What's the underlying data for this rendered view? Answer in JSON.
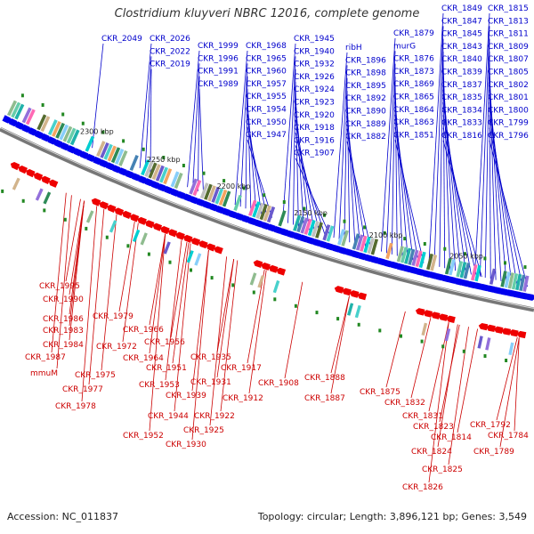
{
  "title": "Clostridium kluyveri NBRC 12016, complete genome",
  "footer": {
    "accession": "Accession: NC_011837",
    "summary": "Topology: circular; Length: 3,896,121 bp; Genes: 3,549"
  },
  "scale_labels": [
    "2300 kbp",
    "2250 kbp",
    "2200 kbp",
    "2150 kbp",
    "2100 kbp",
    "2050 kbp"
  ],
  "colors": {
    "forward": "#0000ee",
    "reverse": "#ee0000",
    "backbone": "#777777",
    "rna": "#228822",
    "label_forward": "#0000cc",
    "label_reverse": "#cc0000"
  },
  "forward_labels": [
    "CKR_2049",
    "CKR_2026",
    "CKR_2022",
    "CKR_2019",
    "CKR_1999",
    "CKR_1996",
    "CKR_1991",
    "CKR_1989",
    "CKR_1968",
    "CKR_1965",
    "CKR_1960",
    "CKR_1957",
    "CKR_1955",
    "CKR_1954",
    "CKR_1950",
    "CKR_1947",
    "CKR_1945",
    "CKR_1940",
    "CKR_1932",
    "CKR_1926",
    "CKR_1924",
    "CKR_1923",
    "CKR_1920",
    "CKR_1918",
    "CKR_1916",
    "CKR_1907",
    "ribH",
    "CKR_1896",
    "CKR_1898",
    "CKR_1895",
    "CKR_1892",
    "CKR_1890",
    "CKR_1889",
    "CKR_1882",
    "CKR_1879",
    "murG",
    "CKR_1876",
    "CKR_1873",
    "CKR_1869",
    "CKR_1865",
    "CKR_1864",
    "CKR_1863",
    "CKR_1851",
    "CKR_1849",
    "CKR_1847",
    "CKR_1845",
    "CKR_1843",
    "CKR_1840",
    "CKR_1839",
    "CKR_1837",
    "CKR_1835",
    "CKR_1834",
    "CKR_1833",
    "CKR_1816",
    "CKR_1815",
    "CKR_1813",
    "CKR_1811",
    "CKR_1809",
    "CKR_1807",
    "CKR_1805",
    "CKR_1802",
    "CKR_1801",
    "CKR_1800",
    "CKR_1799",
    "CKR_1796"
  ],
  "reverse_labels": [
    "CKR_1995",
    "CKR_1990",
    "CKR_1986",
    "CKR_1983",
    "CKR_1984",
    "CKR_1987",
    "mmuM",
    "CKR_1979",
    "CKR_1972",
    "CKR_1975",
    "CKR_1977",
    "CKR_1978",
    "CKR_1966",
    "CKR_1956",
    "CKR_1964",
    "CKR_1951",
    "CKR_1953",
    "CKR_1944",
    "CKR_1952",
    "CKR_1935",
    "CKR_1931",
    "CKR_1939",
    "CKR_1922",
    "CKR_1925",
    "CKR_1930",
    "CKR_1917",
    "CKR_1908",
    "CKR_1912",
    "CKR_1888",
    "CKR_1887",
    "CKR_1875",
    "CKR_1832",
    "CKR_1831",
    "CKR_1823",
    "CKR_1814",
    "CKR_1824",
    "CKR_1825",
    "CKR_1826",
    "CKR_1792",
    "CKR_1784",
    "CKR_1789"
  ]
}
